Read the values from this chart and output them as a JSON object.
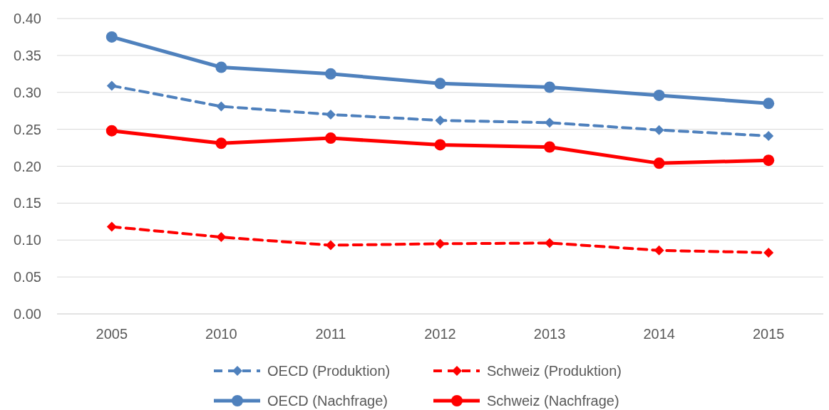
{
  "chart_data": {
    "type": "line",
    "categories": [
      "2005",
      "2010",
      "2011",
      "2012",
      "2013",
      "2014",
      "2015"
    ],
    "ylim": [
      0,
      0.4
    ],
    "yticks": [
      {
        "value": 0,
        "label": "0.00"
      },
      {
        "value": 0.05,
        "label": "0.05"
      },
      {
        "value": 0.1,
        "label": "0.10"
      },
      {
        "value": 0.15,
        "label": "0.15"
      },
      {
        "value": 0.2,
        "label": "0.20"
      },
      {
        "value": 0.25,
        "label": "0.25"
      },
      {
        "value": 0.3,
        "label": "0.30"
      },
      {
        "value": 0.35,
        "label": "0.35"
      },
      {
        "value": 0.4,
        "label": "0.40"
      }
    ],
    "grid": "y",
    "legend": "bottom",
    "series": [
      {
        "name": "OECD (Produktion)",
        "color": "#4f81bd",
        "marker": "diamond",
        "line_style": "dashed",
        "values": [
          0.309,
          0.281,
          0.27,
          0.262,
          0.259,
          0.249,
          0.241
        ]
      },
      {
        "name": "Schweiz (Produktion)",
        "color": "#ff0000",
        "marker": "diamond",
        "line_style": "dashed",
        "values": [
          0.118,
          0.104,
          0.093,
          0.095,
          0.096,
          0.086,
          0.083
        ]
      },
      {
        "name": "OECD (Nachfrage)",
        "color": "#4f81bd",
        "marker": "circle",
        "line_style": "solid",
        "values": [
          0.375,
          0.334,
          0.325,
          0.312,
          0.307,
          0.296,
          0.285
        ]
      },
      {
        "name": "Schweiz (Nachfrage)",
        "color": "#ff0000",
        "marker": "circle",
        "line_style": "solid",
        "values": [
          0.248,
          0.231,
          0.238,
          0.229,
          0.226,
          0.204,
          0.208
        ]
      }
    ]
  }
}
